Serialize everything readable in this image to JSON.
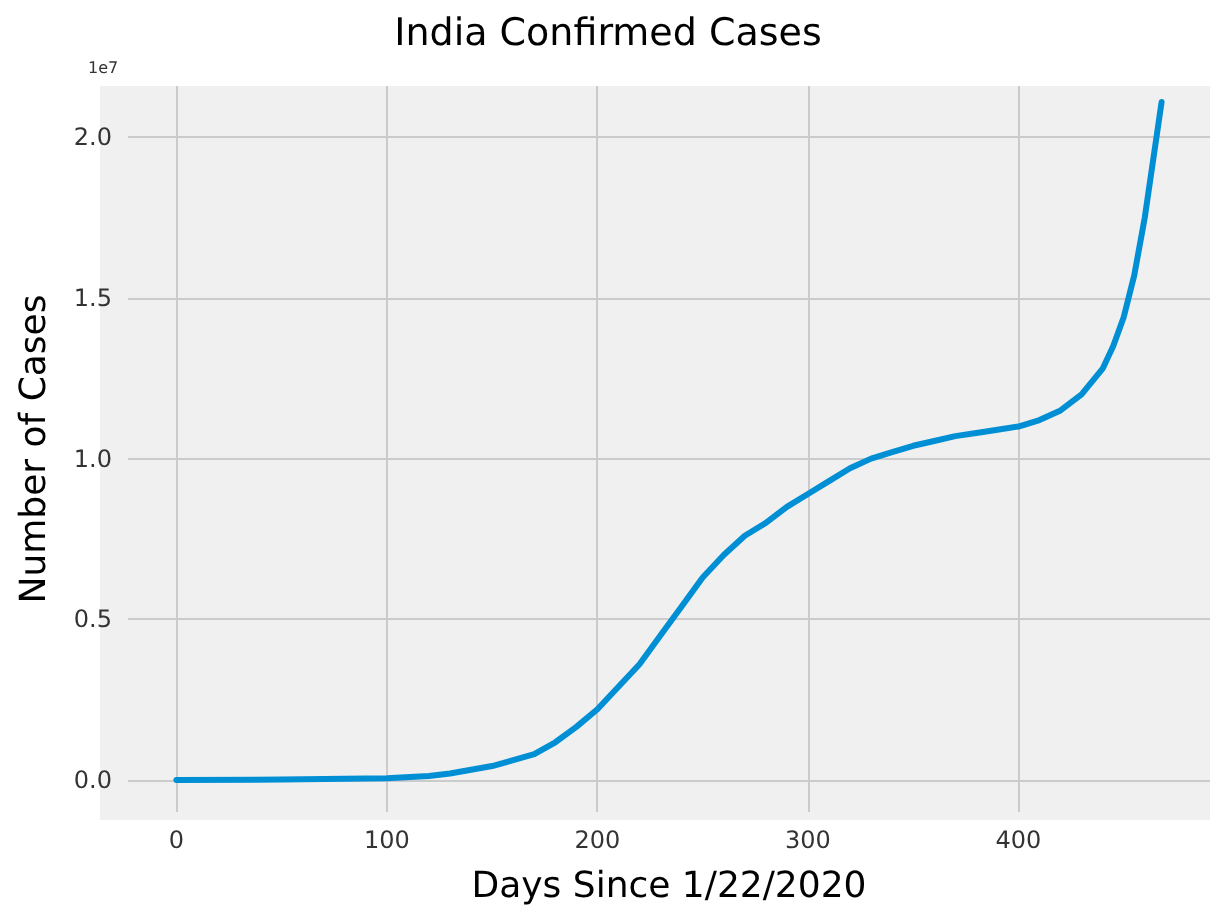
{
  "chart_data": {
    "type": "line",
    "title": "India Confirmed Cases",
    "xlabel": "Days Since 1/22/2020",
    "ylabel": "Number of Cases",
    "annotations": [
      "1e7"
    ],
    "x": [
      0,
      50,
      100,
      120,
      130,
      150,
      170,
      180,
      190,
      200,
      210,
      220,
      230,
      240,
      250,
      260,
      270,
      280,
      290,
      300,
      310,
      320,
      330,
      340,
      350,
      360,
      370,
      380,
      390,
      400,
      410,
      420,
      430,
      440,
      445,
      450,
      455,
      460,
      464,
      468
    ],
    "series": [
      {
        "color": "#008fd5",
        "values": [
          0,
          0.001,
          0.005,
          0.012,
          0.02,
          0.043,
          0.08,
          0.117,
          0.165,
          0.22,
          0.29,
          0.36,
          0.45,
          0.54,
          0.63,
          0.7,
          0.76,
          0.8,
          0.85,
          0.89,
          0.93,
          0.97,
          1.0,
          1.02,
          1.04,
          1.055,
          1.07,
          1.08,
          1.09,
          1.1,
          1.12,
          1.15,
          1.2,
          1.28,
          1.35,
          1.44,
          1.57,
          1.75,
          1.93,
          2.11
        ]
      }
    ],
    "xlim": [
      -23,
      491
    ],
    "xticks": [
      0,
      100,
      200,
      300,
      400
    ],
    "ylim": [
      -0.1,
      2.16
    ],
    "yticks": [
      {
        "value": 0,
        "label": "0.0"
      },
      {
        "value": 0.5,
        "label": "0.5"
      },
      {
        "value": 1,
        "label": "1.0"
      },
      {
        "value": 1.5,
        "label": "1.5"
      },
      {
        "value": 2,
        "label": "2.0"
      }
    ],
    "grid": true,
    "marker": "none",
    "line_style": "solid"
  }
}
